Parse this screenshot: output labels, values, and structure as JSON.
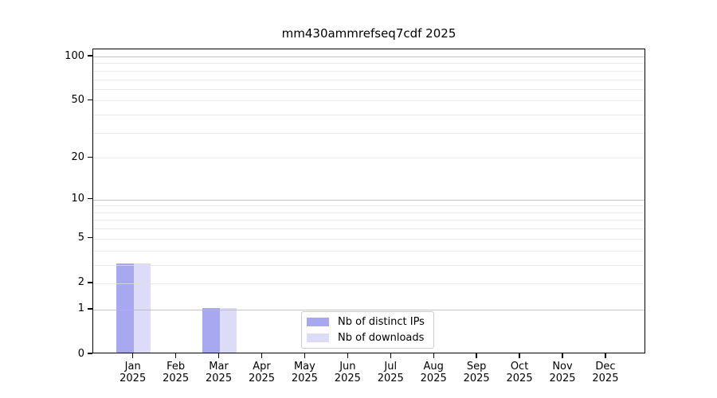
{
  "chart_data": {
    "type": "bar",
    "title": "mm430ammrefseq7cdf 2025",
    "x_tick_months": [
      "Jan",
      "Feb",
      "Mar",
      "Apr",
      "May",
      "Jun",
      "Jul",
      "Aug",
      "Sep",
      "Oct",
      "Nov",
      "Dec"
    ],
    "x_tick_year": "2025",
    "yscale": "log1p",
    "ylim": [
      0,
      112
    ],
    "yticks": [
      0,
      1,
      2,
      5,
      10,
      20,
      50,
      100
    ],
    "major_gridlines": [
      1,
      10,
      100
    ],
    "minor_gridlines": [
      2,
      3,
      4,
      5,
      6,
      7,
      8,
      9,
      20,
      30,
      40,
      50,
      60,
      70,
      80,
      90
    ],
    "grid": "horizontal, drawn above bars",
    "legend_position": "lower center",
    "series": [
      {
        "name": "Nb of distinct IPs",
        "color": "#a8a8f0",
        "values": [
          3,
          0,
          1,
          0,
          0,
          0,
          0,
          0,
          0,
          0,
          0,
          0
        ]
      },
      {
        "name": "Nb of downloads",
        "color": "#dcdcf8",
        "values": [
          3,
          0,
          1,
          0,
          0,
          0,
          0,
          0,
          0,
          0,
          0,
          0
        ]
      }
    ]
  }
}
